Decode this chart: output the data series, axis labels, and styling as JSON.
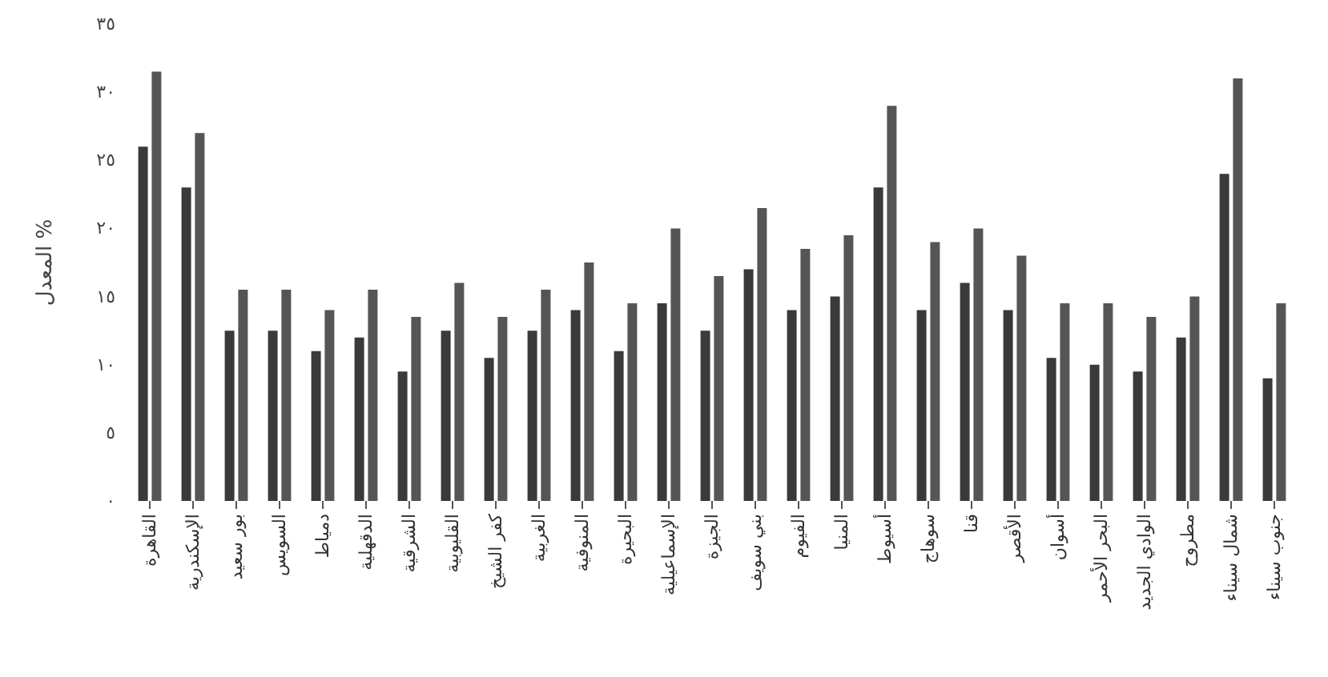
{
  "chart_data": {
    "type": "bar",
    "ylabel": "المعدل %",
    "categories": [
      "القاهرة",
      "الإسكندرية",
      "بور سعيد",
      "السويس",
      "دمياط",
      "الدقهلية",
      "الشرقية",
      "القليوبية",
      "كفر الشيخ",
      "الغربية",
      "المنوفية",
      "البحيرة",
      "الإسماعيلية",
      "الجيزة",
      "بني سويف",
      "الفيوم",
      "المنيا",
      "أسيوط",
      "سوهاج",
      "قنا",
      "الأقصر",
      "أسوان",
      "البحر الأحمر",
      "الوادي الجديد",
      "مطروح",
      "شمال سيناء",
      "جنوب سيناء"
    ],
    "series": [
      {
        "color": "#3a3a3a",
        "values": [
          26,
          23,
          12.5,
          12.5,
          11,
          12,
          9.5,
          12.5,
          10.5,
          12.5,
          14,
          11,
          14.5,
          12.5,
          17,
          14,
          15,
          23,
          14,
          16,
          14,
          10.5,
          10,
          9.5,
          12,
          24,
          9
        ]
      },
      {
        "color": "#555555",
        "values": [
          31.5,
          27,
          15.5,
          15.5,
          14,
          15.5,
          13.5,
          16,
          13.5,
          15.5,
          17.5,
          14.5,
          20,
          16.5,
          21.5,
          18.5,
          19.5,
          29,
          19,
          20,
          18,
          14.5,
          14.5,
          13.5,
          15,
          31,
          14.5
        ]
      }
    ],
    "ylim": [
      0,
      35
    ],
    "yticks": [
      {
        "value": 0,
        "label": "٠"
      },
      {
        "value": 5,
        "label": "٥"
      },
      {
        "value": 10,
        "label": "١٠"
      },
      {
        "value": 15,
        "label": "١٥"
      },
      {
        "value": 20,
        "label": "٢٠"
      },
      {
        "value": 25,
        "label": "٢٥"
      },
      {
        "value": 30,
        "label": "٣٠"
      },
      {
        "value": 35,
        "label": "٣٥"
      }
    ],
    "grid": false
  }
}
